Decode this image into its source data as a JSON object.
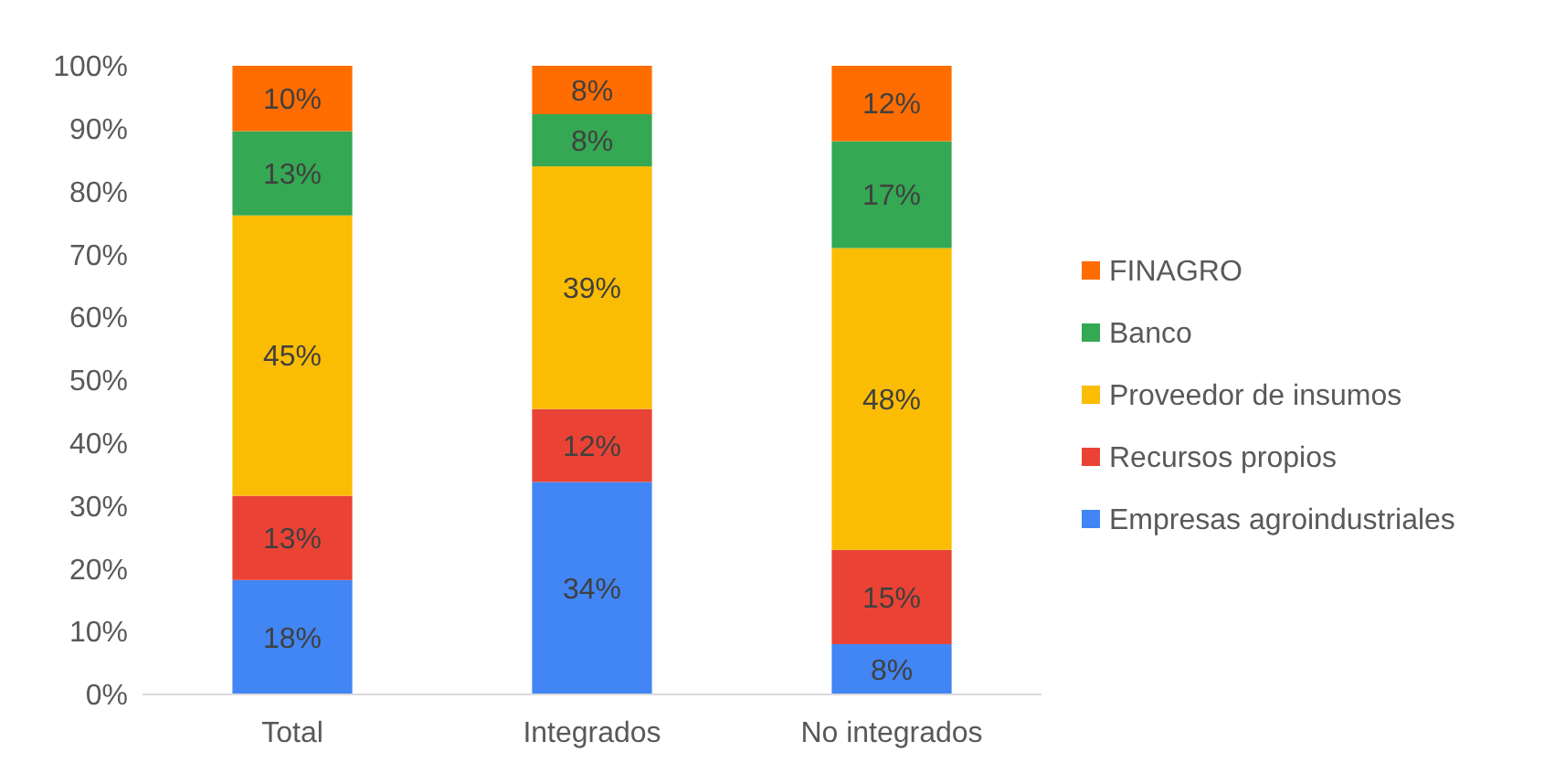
{
  "chart_data": {
    "type": "bar",
    "stacked": true,
    "categories": [
      "Total",
      "Integrados",
      "No integrados"
    ],
    "series": [
      {
        "name": "Empresas agroindustriales",
        "color": "#4285f4",
        "values": [
          18.2,
          33.8,
          8
        ],
        "value_labels": [
          "18%",
          "34%",
          "8%"
        ]
      },
      {
        "name": "Recursos propios",
        "color": "#ea4335",
        "values": [
          13.4,
          11.6,
          15
        ],
        "value_labels": [
          "13%",
          "12%",
          "15%"
        ]
      },
      {
        "name": "Proveedor de insumos",
        "color": "#fbbc04",
        "values": [
          44.6,
          38.6,
          48
        ],
        "value_labels": [
          "45%",
          "39%",
          "48%"
        ]
      },
      {
        "name": "Banco",
        "color": "#34a853",
        "values": [
          13.4,
          8.3,
          17
        ],
        "value_labels": [
          "13%",
          "8%",
          "17%"
        ]
      },
      {
        "name": "FINAGRO",
        "color": "#ff6d01",
        "values": [
          10.4,
          7.7,
          12
        ],
        "value_labels": [
          "10%",
          "8%",
          "12%"
        ]
      }
    ],
    "ylim": [
      0,
      100
    ],
    "yticks": [
      {
        "value": 0,
        "label": "0%"
      },
      {
        "value": 10,
        "label": "10%"
      },
      {
        "value": 20,
        "label": "20%"
      },
      {
        "value": 30,
        "label": "30%"
      },
      {
        "value": 40,
        "label": "40%"
      },
      {
        "value": 50,
        "label": "50%"
      },
      {
        "value": 60,
        "label": "60%"
      },
      {
        "value": 70,
        "label": "70%"
      },
      {
        "value": 80,
        "label": "80%"
      },
      {
        "value": 90,
        "label": "90%"
      },
      {
        "value": 100,
        "label": "100%"
      }
    ],
    "grid": false,
    "legend": "right"
  }
}
